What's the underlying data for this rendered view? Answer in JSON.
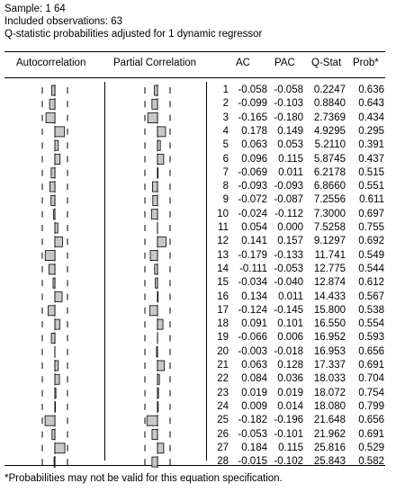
{
  "header": {
    "sample": "Sample: 1 64",
    "observations": "Included observations: 63",
    "note": "Q-statistic probabilities adjusted for 1 dynamic regressor"
  },
  "columns": {
    "autocorrelation": "Autocorrelation",
    "partial_correlation": "Partial Correlation",
    "ac": "AC",
    "pac": "PAC",
    "qstat": "Q-Stat",
    "prob": "Prob*"
  },
  "footnote": "*Probabilities may not be valid for this equation specification.",
  "colors": {
    "bar_fill": "#c8c8c8",
    "bar_stroke": "#000000"
  },
  "rows": [
    {
      "lag": "1",
      "ac": "-0.058",
      "pac": "-0.058",
      "q": "0.2247",
      "prob": "0.636"
    },
    {
      "lag": "2",
      "ac": "-0.099",
      "pac": "-0.103",
      "q": "0.8840",
      "prob": "0.643"
    },
    {
      "lag": "3",
      "ac": "-0.165",
      "pac": "-0.180",
      "q": "2.7369",
      "prob": "0.434"
    },
    {
      "lag": "4",
      "ac": "0.178",
      "pac": "0.149",
      "q": "4.9295",
      "prob": "0.295"
    },
    {
      "lag": "5",
      "ac": "0.063",
      "pac": "0.053",
      "q": "5.2110",
      "prob": "0.391"
    },
    {
      "lag": "6",
      "ac": "0.096",
      "pac": "0.115",
      "q": "5.8745",
      "prob": "0.437"
    },
    {
      "lag": "7",
      "ac": "-0.069",
      "pac": "0.011",
      "q": "6.2178",
      "prob": "0.515"
    },
    {
      "lag": "8",
      "ac": "-0.093",
      "pac": "-0.093",
      "q": "6.8660",
      "prob": "0.551"
    },
    {
      "lag": "9",
      "ac": "-0.072",
      "pac": "-0.087",
      "q": "7.2556",
      "prob": "0.611"
    },
    {
      "lag": "10",
      "ac": "-0.024",
      "pac": "-0.112",
      "q": "7.3000",
      "prob": "0.697"
    },
    {
      "lag": "11",
      "ac": "0.054",
      "pac": "0.000",
      "q": "7.5258",
      "prob": "0.755"
    },
    {
      "lag": "12",
      "ac": "0.141",
      "pac": "0.157",
      "q": "9.1297",
      "prob": "0.692"
    },
    {
      "lag": "13",
      "ac": "-0.179",
      "pac": "-0.133",
      "q": "11.741",
      "prob": "0.549"
    },
    {
      "lag": "14",
      "ac": "-0.111",
      "pac": "-0.053",
      "q": "12.775",
      "prob": "0.544"
    },
    {
      "lag": "15",
      "ac": "-0.034",
      "pac": "-0.040",
      "q": "12.874",
      "prob": "0.612"
    },
    {
      "lag": "16",
      "ac": "0.134",
      "pac": "0.011",
      "q": "14.433",
      "prob": "0.567"
    },
    {
      "lag": "17",
      "ac": "-0.124",
      "pac": "-0.145",
      "q": "15.800",
      "prob": "0.538"
    },
    {
      "lag": "18",
      "ac": "0.091",
      "pac": "0.101",
      "q": "16.550",
      "prob": "0.554"
    },
    {
      "lag": "19",
      "ac": "-0.066",
      "pac": "0.006",
      "q": "16.952",
      "prob": "0.593"
    },
    {
      "lag": "20",
      "ac": "-0.003",
      "pac": "-0.018",
      "q": "16.953",
      "prob": "0.656"
    },
    {
      "lag": "21",
      "ac": "0.063",
      "pac": "0.128",
      "q": "17.337",
      "prob": "0.691"
    },
    {
      "lag": "22",
      "ac": "0.084",
      "pac": "0.036",
      "q": "18.033",
      "prob": "0.704"
    },
    {
      "lag": "23",
      "ac": "0.019",
      "pac": "0.019",
      "q": "18.072",
      "prob": "0.754"
    },
    {
      "lag": "24",
      "ac": "0.009",
      "pac": "0.014",
      "q": "18.080",
      "prob": "0.799"
    },
    {
      "lag": "25",
      "ac": "-0.182",
      "pac": "-0.196",
      "q": "21.648",
      "prob": "0.656"
    },
    {
      "lag": "26",
      "ac": "-0.053",
      "pac": "-0.101",
      "q": "21.962",
      "prob": "0.691"
    },
    {
      "lag": "27",
      "ac": "0.184",
      "pac": "0.115",
      "q": "25.816",
      "prob": "0.529"
    },
    {
      "lag": "28",
      "ac": "-0.015",
      "pac": "-0.102",
      "q": "25.843",
      "prob": "0.582"
    }
  ]
}
